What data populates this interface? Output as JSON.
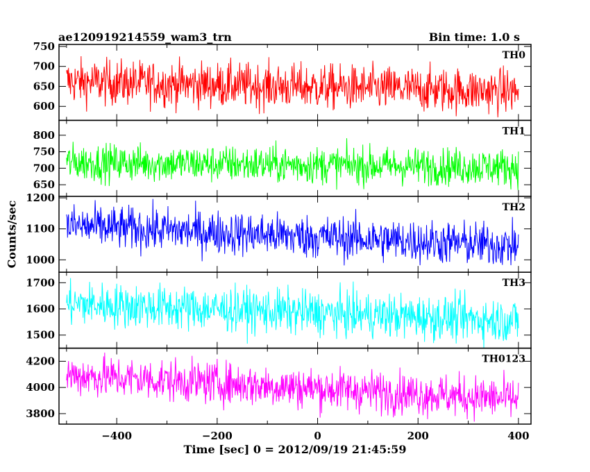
{
  "title_left": "ae120919214559_wam3_trn",
  "title_right": "Bin time: 1.0 s",
  "chart_data": {
    "type": "line",
    "xlabel": "Time [sec] 0 = 2012/09/19 21:45:59",
    "ylabel": "Counts/sec",
    "xlim": [
      -515,
      425
    ],
    "xticks": [
      -400,
      -200,
      0,
      200,
      400
    ],
    "x_range": [
      -500,
      400
    ],
    "bin_time_s": 1.0,
    "panels": [
      {
        "name": "TH0",
        "color": "#ff0000",
        "ylim": [
          565,
          755
        ],
        "yticks": [
          600,
          650,
          700,
          750
        ],
        "mean_start": 662,
        "mean_end": 637,
        "noise": 28
      },
      {
        "name": "TH1",
        "color": "#00ff00",
        "ylim": [
          615,
          845
        ],
        "yticks": [
          650,
          700,
          750,
          800
        ],
        "mean_start": 718,
        "mean_end": 703,
        "noise": 28
      },
      {
        "name": "TH2",
        "color": "#0000ff",
        "ylim": [
          960,
          1205
        ],
        "yticks": [
          1000,
          1100,
          1200
        ],
        "mean_start": 1110,
        "mean_end": 1045,
        "noise": 35
      },
      {
        "name": "TH3",
        "color": "#00ffff",
        "ylim": [
          1450,
          1740
        ],
        "yticks": [
          1500,
          1600,
          1700
        ],
        "mean_start": 1620,
        "mean_end": 1555,
        "noise": 42
      },
      {
        "name": "TH0123",
        "color": "#ff00ff",
        "ylim": [
          3720,
          4300
        ],
        "yticks": [
          3800,
          4000,
          4200
        ],
        "mean_start": 4095,
        "mean_end": 3910,
        "noise": 80
      }
    ]
  }
}
